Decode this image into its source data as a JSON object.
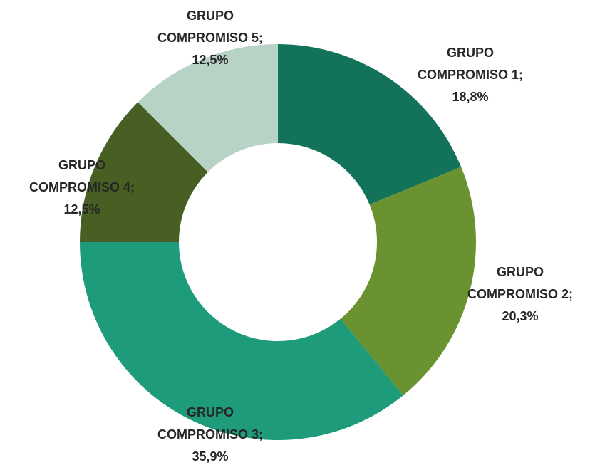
{
  "chart_data": {
    "type": "donut",
    "categories": [
      "GRUPO COMPROMISO 1",
      "GRUPO COMPROMISO 2",
      "GRUPO COMPROMISO 3",
      "GRUPO COMPROMISO 4",
      "GRUPO COMPROMISO 5"
    ],
    "values": [
      18.8,
      20.3,
      35.9,
      12.5,
      12.5
    ],
    "value_labels": [
      "18,8%",
      "20,3%",
      "35,9%",
      "12,5%",
      "12,5%"
    ],
    "label_separator": ";",
    "colors": [
      "#13735a",
      "#6a9231",
      "#1e9b7b",
      "#475f22",
      "#b7d3c6"
    ]
  }
}
